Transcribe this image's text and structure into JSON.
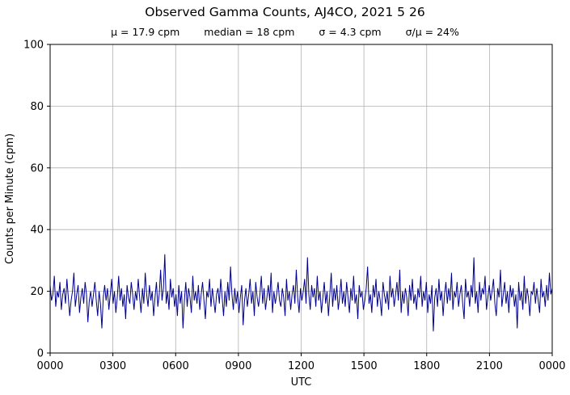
{
  "chart_data": {
    "type": "line",
    "title": "Observed Gamma Counts, AJ4CO, 2021 5 26",
    "stats": {
      "mu": "μ = 17.9 cpm",
      "median": "median = 18 cpm",
      "sigma": "σ = 4.3 cpm",
      "ratio": "σ/μ = 24%"
    },
    "xlabel": "UTC",
    "ylabel": "Counts per Minute (cpm)",
    "x_tick_labels": [
      "0000",
      "0300",
      "0600",
      "0900",
      "1200",
      "1500",
      "1800",
      "2100",
      "0000"
    ],
    "x_range_minutes": [
      0,
      1440
    ],
    "ylim": [
      0,
      100
    ],
    "yticks": [
      0,
      20,
      40,
      60,
      80,
      100
    ],
    "grid": true,
    "grid_color": "#b0b0b0",
    "line_color": "#00008B",
    "series": [
      {
        "name": "observed gamma counts (cpm)",
        "values": [
          22,
          17,
          19,
          25,
          15,
          20,
          18,
          23,
          14,
          19,
          21,
          16,
          24,
          18,
          12,
          17,
          20,
          26,
          15,
          19,
          22,
          13,
          18,
          21,
          16,
          23,
          19,
          10,
          17,
          20,
          15,
          19,
          23,
          17,
          12,
          20,
          16,
          8,
          18,
          22,
          17,
          21,
          14,
          19,
          24,
          16,
          20,
          13,
          18,
          25,
          17,
          21,
          15,
          19,
          11,
          22,
          18,
          16,
          23,
          19,
          14,
          20,
          17,
          24,
          18,
          13,
          21,
          16,
          26,
          19,
          15,
          22,
          17,
          20,
          12,
          18,
          23,
          15,
          19,
          27,
          17,
          21,
          32,
          16,
          20,
          14,
          24,
          18,
          21,
          15,
          19,
          12,
          22,
          16,
          20,
          8,
          17,
          23,
          15,
          21,
          18,
          13,
          25,
          17,
          20,
          16,
          22,
          14,
          19,
          23,
          17,
          11,
          20,
          18,
          24,
          15,
          21,
          17,
          13,
          19,
          21,
          16,
          24,
          18,
          12,
          20,
          15,
          23,
          17,
          28,
          19,
          14,
          21,
          16,
          20,
          13,
          18,
          22,
          9,
          17,
          21,
          15,
          19,
          24,
          16,
          20,
          12,
          23,
          18,
          15,
          19,
          25,
          16,
          21,
          14,
          18,
          22,
          17,
          26,
          13,
          20,
          16,
          19,
          23,
          17,
          15,
          21,
          18,
          12,
          24,
          17,
          20,
          14,
          19,
          22,
          16,
          27,
          18,
          13,
          21,
          17,
          20,
          24,
          16,
          31,
          19,
          14,
          22,
          18,
          21,
          15,
          25,
          17,
          20,
          13,
          18,
          23,
          16,
          20,
          12,
          19,
          26,
          15,
          21,
          17,
          22,
          14,
          18,
          24,
          16,
          20,
          15,
          23,
          18,
          13,
          21,
          17,
          25,
          16,
          19,
          11,
          22,
          18,
          20,
          14,
          17,
          21,
          28,
          16,
          19,
          13,
          22,
          18,
          24,
          15,
          20,
          17,
          12,
          23,
          19,
          16,
          20,
          14,
          25,
          18,
          21,
          15,
          19,
          23,
          17,
          27,
          13,
          20,
          16,
          21,
          18,
          12,
          22,
          17,
          24,
          16,
          19,
          14,
          21,
          18,
          25,
          15,
          20,
          17,
          23,
          13,
          19,
          16,
          22,
          7,
          18,
          21,
          15,
          24,
          17,
          20,
          12,
          19,
          23,
          16,
          21,
          17,
          26,
          14,
          20,
          18,
          23,
          15,
          19,
          22,
          16,
          11,
          24,
          18,
          20,
          15,
          22,
          18,
          31,
          16,
          20,
          13,
          23,
          17,
          21,
          19,
          25,
          14,
          18,
          22,
          17,
          20,
          24,
          16,
          12,
          21,
          18,
          27,
          15,
          19,
          23,
          16,
          20,
          13,
          22,
          18,
          21,
          15,
          19,
          8,
          23,
          17,
          20,
          14,
          25,
          16,
          21,
          18,
          12,
          20,
          19,
          23,
          16,
          21,
          17,
          13,
          24,
          18,
          20,
          15,
          22,
          17,
          26,
          19,
          21
        ]
      }
    ]
  }
}
